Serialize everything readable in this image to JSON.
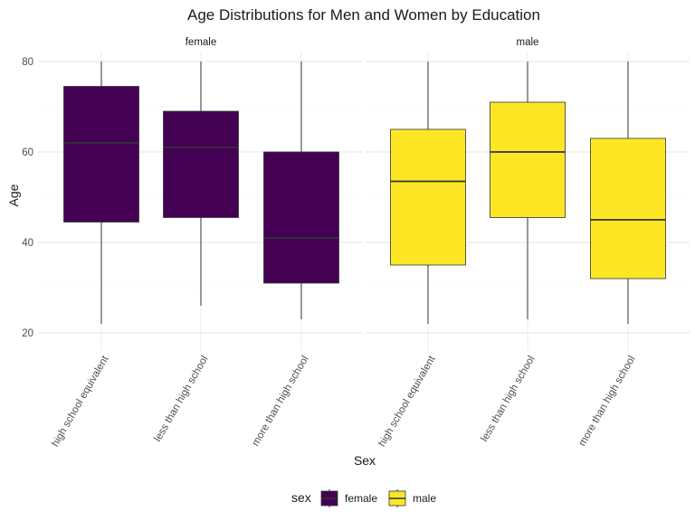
{
  "chart_data": {
    "type": "boxplot",
    "title": "Age Distributions for Men and Women by Education",
    "xlabel": "Sex",
    "ylabel": "Age",
    "ylim": [
      16,
      82
    ],
    "yticks": [
      20,
      40,
      60,
      80
    ],
    "grid": true,
    "legend": {
      "title": "sex",
      "position": "bottom",
      "entries": [
        {
          "label": "female",
          "color": "#440154"
        },
        {
          "label": "male",
          "color": "#FDE725"
        }
      ]
    },
    "categories": [
      "high school equivalent",
      "less than high school",
      "more than high school"
    ],
    "panels": [
      {
        "label": "female",
        "color": "#440154",
        "median_color": "#333333",
        "boxes": [
          {
            "category": "high school equivalent",
            "min": 22,
            "q1": 44.5,
            "median": 62,
            "q3": 74.5,
            "max": 80
          },
          {
            "category": "less than high school",
            "min": 26,
            "q1": 45.5,
            "median": 61,
            "q3": 69,
            "max": 80
          },
          {
            "category": "more than high school",
            "min": 23,
            "q1": 31,
            "median": 41,
            "q3": 60,
            "max": 80
          }
        ]
      },
      {
        "label": "male",
        "color": "#FDE725",
        "median_color": "#333333",
        "boxes": [
          {
            "category": "high school equivalent",
            "min": 22,
            "q1": 35,
            "median": 53.5,
            "q3": 65,
            "max": 80
          },
          {
            "category": "less than high school",
            "min": 23,
            "q1": 45.5,
            "median": 60,
            "q3": 71,
            "max": 80
          },
          {
            "category": "more than high school",
            "min": 22,
            "q1": 32,
            "median": 45,
            "q3": 63,
            "max": 80
          }
        ]
      }
    ]
  }
}
